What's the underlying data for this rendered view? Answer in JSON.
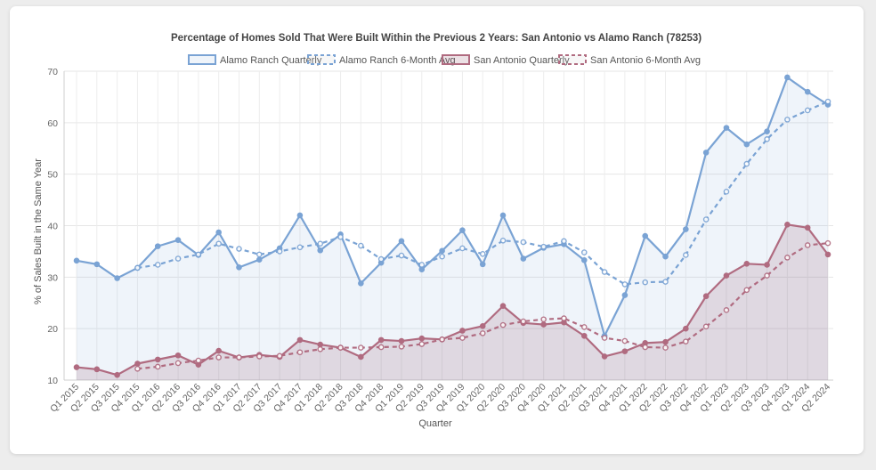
{
  "chart_data": {
    "type": "line",
    "title": "Percentage of Homes Sold That Were Built Within the Previous 2 Years: San Antonio vs Alamo Ranch (78253)",
    "xlabel": "Quarter",
    "ylabel": "% of Sales Built in the Same Year",
    "ylim": [
      10,
      70
    ],
    "yticks": [
      10,
      20,
      30,
      40,
      50,
      60,
      70
    ],
    "grid": true,
    "legend_position": "top",
    "categories": [
      "Q1 2015",
      "Q2 2015",
      "Q3 2015",
      "Q4 2015",
      "Q1 2016",
      "Q2 2016",
      "Q3 2016",
      "Q4 2016",
      "Q1 2017",
      "Q2 2017",
      "Q3 2017",
      "Q4 2017",
      "Q1 2018",
      "Q2 2018",
      "Q3 2018",
      "Q4 2018",
      "Q1 2019",
      "Q2 2019",
      "Q3 2019",
      "Q4 2019",
      "Q1 2020",
      "Q2 2020",
      "Q3 2020",
      "Q4 2020",
      "Q1 2021",
      "Q2 2021",
      "Q3 2021",
      "Q4 2021",
      "Q1 2022",
      "Q2 2022",
      "Q3 2022",
      "Q4 2022",
      "Q1 2023",
      "Q2 2023",
      "Q3 2023",
      "Q4 2023",
      "Q1 2024",
      "Q2 2024"
    ],
    "series": [
      {
        "name": "Alamo Ranch Quarterly",
        "color": "#7aa3d4",
        "dashed": false,
        "fill": "rgba(122,163,212,0.12)",
        "values": [
          33.2,
          32.5,
          29.8,
          31.8,
          36.0,
          37.2,
          34.3,
          38.7,
          31.9,
          33.4,
          35.6,
          42.0,
          35.2,
          38.3,
          28.8,
          32.8,
          37.0,
          31.5,
          35.1,
          39.1,
          32.5,
          42.0,
          33.6,
          35.7,
          36.4,
          33.3,
          18.6,
          26.5,
          38.0,
          34.0,
          39.3,
          54.2,
          59.0,
          55.8,
          58.3,
          68.8,
          66.0,
          63.5
        ]
      },
      {
        "name": "Alamo Ranch 6-Month Avg",
        "color": "#7aa3d4",
        "dashed": true,
        "fill": null,
        "values": [
          null,
          null,
          null,
          31.8,
          32.4,
          33.6,
          34.4,
          36.5,
          35.5,
          34.4,
          35.0,
          35.8,
          36.5,
          37.8,
          36.1,
          33.5,
          34.2,
          32.4,
          34.0,
          35.6,
          34.5,
          37.1,
          36.8,
          35.9,
          37.0,
          34.8,
          31.0,
          28.6,
          29.0,
          29.1,
          34.3,
          41.2,
          46.6,
          52.0,
          56.8,
          60.6,
          62.4,
          64.1
        ]
      },
      {
        "name": "San Antonio Quarterly",
        "color": "#b06b80",
        "dashed": false,
        "fill": "rgba(150,88,112,0.18)",
        "values": [
          12.5,
          12.1,
          11.0,
          13.2,
          14.0,
          14.8,
          13.0,
          15.7,
          14.4,
          14.9,
          14.5,
          17.8,
          16.9,
          16.3,
          14.5,
          17.8,
          17.6,
          18.1,
          17.9,
          19.6,
          20.5,
          24.4,
          21.1,
          20.8,
          21.2,
          18.6,
          14.6,
          15.6,
          17.2,
          17.4,
          20.0,
          26.3,
          30.3,
          32.6,
          32.4,
          40.2,
          39.6,
          34.4
        ]
      },
      {
        "name": "San Antonio 6-Month Avg",
        "color": "#b06b80",
        "dashed": true,
        "fill": null,
        "values": [
          null,
          null,
          null,
          12.2,
          12.6,
          13.3,
          13.8,
          14.4,
          14.4,
          14.6,
          14.7,
          15.4,
          16.0,
          16.3,
          16.3,
          16.4,
          16.5,
          17.0,
          17.9,
          18.2,
          19.1,
          20.7,
          21.4,
          21.8,
          22.0,
          20.3,
          18.2,
          17.6,
          16.4,
          16.3,
          17.5,
          20.4,
          23.6,
          27.5,
          30.3,
          33.8,
          36.2,
          36.6
        ]
      }
    ]
  }
}
